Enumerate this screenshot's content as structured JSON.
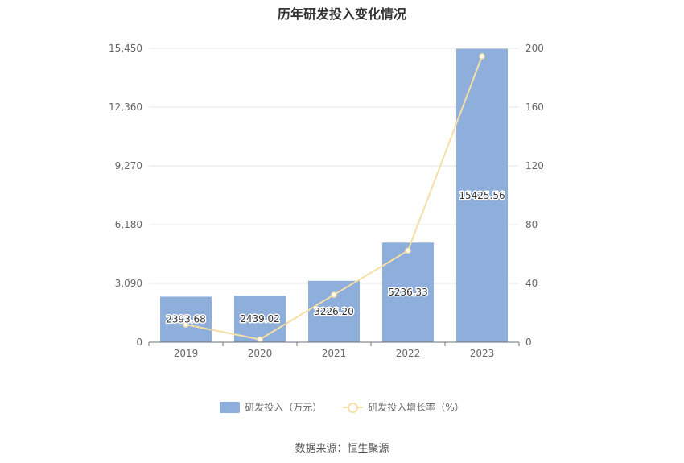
{
  "chart_data": {
    "type": "bar",
    "title": "历年研发投入变化情况",
    "categories": [
      "2019",
      "2020",
      "2021",
      "2022",
      "2023"
    ],
    "series": [
      {
        "name": "研发投入（万元）",
        "type": "bar",
        "axis": "left",
        "values": [
          2393.68,
          2439.02,
          3226.2,
          5236.33,
          15425.56
        ],
        "labels": [
          "2393.68",
          "2439.02",
          "3226.20",
          "5236.33",
          "15425.56"
        ],
        "color": "#8eaedb"
      },
      {
        "name": "研发投入增长率（%）",
        "type": "line",
        "axis": "right",
        "values": [
          12.0,
          1.9,
          32.3,
          62.3,
          194.6
        ],
        "color": "#f5dfa6"
      }
    ],
    "y_left": {
      "ticks": [
        0,
        3090,
        6180,
        9270,
        12360,
        15450
      ],
      "tick_labels": [
        "0",
        "3,090",
        "6,180",
        "9,270",
        "12,360",
        "15,450"
      ],
      "range": [
        0,
        15450
      ]
    },
    "y_right": {
      "ticks": [
        0,
        40,
        80,
        120,
        160,
        200
      ],
      "tick_labels": [
        "0",
        "40",
        "80",
        "120",
        "160",
        "200"
      ],
      "range": [
        0,
        200
      ]
    },
    "grid": true,
    "legend_position": "bottom-center"
  },
  "source": "数据来源：恒生聚源"
}
